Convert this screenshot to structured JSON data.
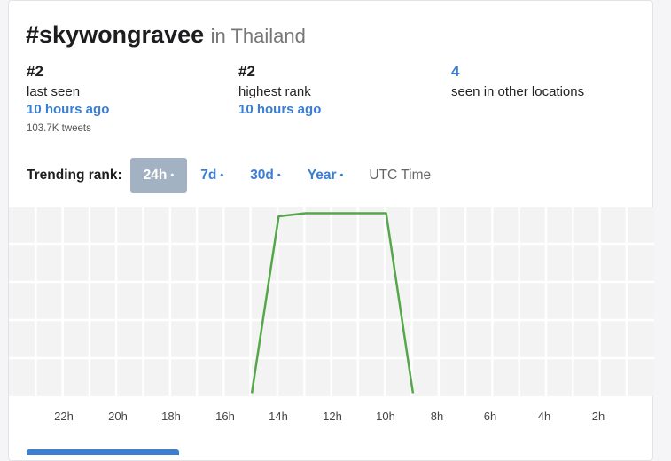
{
  "header": {
    "hashtag": "#skywongravee",
    "location_text": "in Thailand"
  },
  "stats": {
    "last_seen": {
      "rank": "#2",
      "label": "last seen",
      "time": "10 hours ago",
      "tweets": "103.7K tweets"
    },
    "highest": {
      "rank": "#2",
      "label": "highest rank",
      "time": "10 hours ago"
    },
    "other": {
      "count": "4",
      "label": "seen in other locations"
    }
  },
  "trending": {
    "label": "Trending rank:",
    "ranges": [
      {
        "label": "24h",
        "active": true
      },
      {
        "label": "7d",
        "active": false
      },
      {
        "label": "30d",
        "active": false
      },
      {
        "label": "Year",
        "active": false
      }
    ],
    "dot": "•",
    "timezone": "UTC Time"
  },
  "chart_data": {
    "type": "line",
    "x_labels": [
      "22h",
      "20h",
      "18h",
      "16h",
      "14h",
      "12h",
      "10h",
      "8h",
      "6h",
      "4h",
      "2h"
    ],
    "x_hours_ago": [
      23,
      22,
      21,
      20,
      19,
      18,
      17,
      16,
      15,
      14,
      13,
      12,
      11,
      10,
      9,
      8,
      7,
      6,
      5,
      4,
      3,
      2,
      1,
      0
    ],
    "y_rank": [
      null,
      null,
      null,
      null,
      null,
      null,
      null,
      null,
      60,
      3,
      2,
      2,
      2,
      2,
      60,
      null,
      null,
      null,
      null,
      null,
      null,
      null,
      null,
      null
    ],
    "ylim": [
      1,
      50
    ],
    "line_color": "#56a64b",
    "grid_color": "#ffffff",
    "plot_bg": "#f3f3f3"
  },
  "colors": {
    "accent": "#3b7fd4",
    "active_range_bg": "#a3b2c3"
  }
}
